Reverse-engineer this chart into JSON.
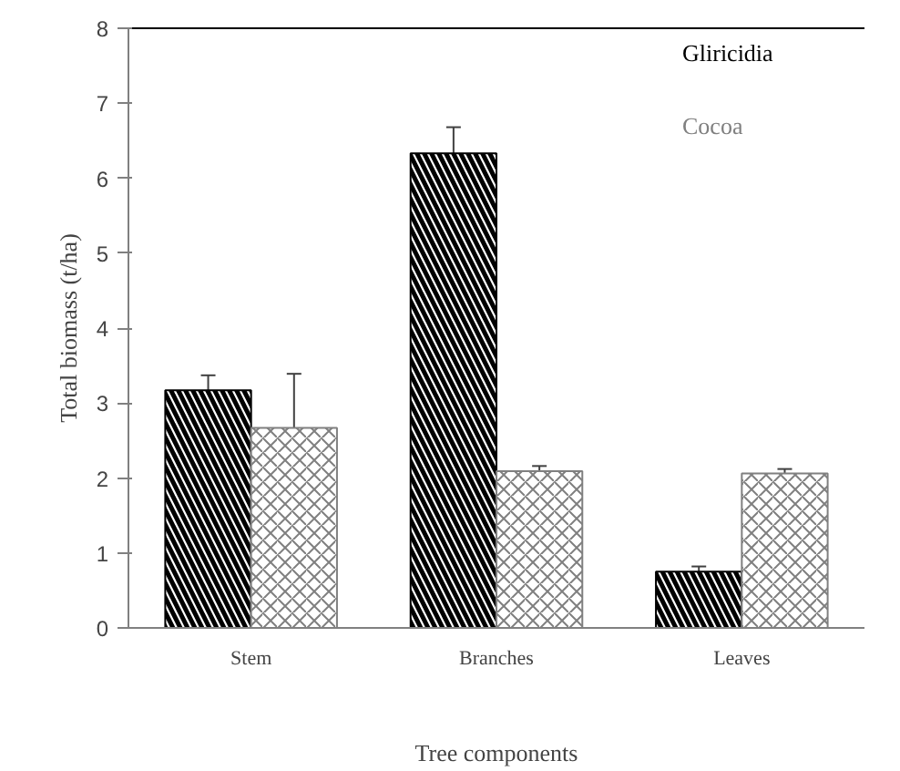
{
  "chart_data": {
    "type": "bar",
    "xlabel": "Tree components",
    "ylabel": "Total biomass (t/ha)",
    "categories": [
      "Stem",
      "Branches",
      "Leaves"
    ],
    "series": [
      {
        "name": "Gliricidia",
        "color": "#000000",
        "values": [
          3.17,
          6.33,
          0.75
        ],
        "errors": [
          0.2,
          0.35,
          0.07
        ]
      },
      {
        "name": "Cocoa",
        "color": "#808080",
        "values": [
          2.67,
          2.09,
          2.06
        ],
        "errors": [
          0.72,
          0.07,
          0.06
        ]
      }
    ],
    "ylim": [
      0,
      8
    ],
    "yticks": [
      0,
      1,
      2,
      3,
      4,
      5,
      6,
      7,
      8
    ],
    "grid": false,
    "legend": "top right"
  }
}
